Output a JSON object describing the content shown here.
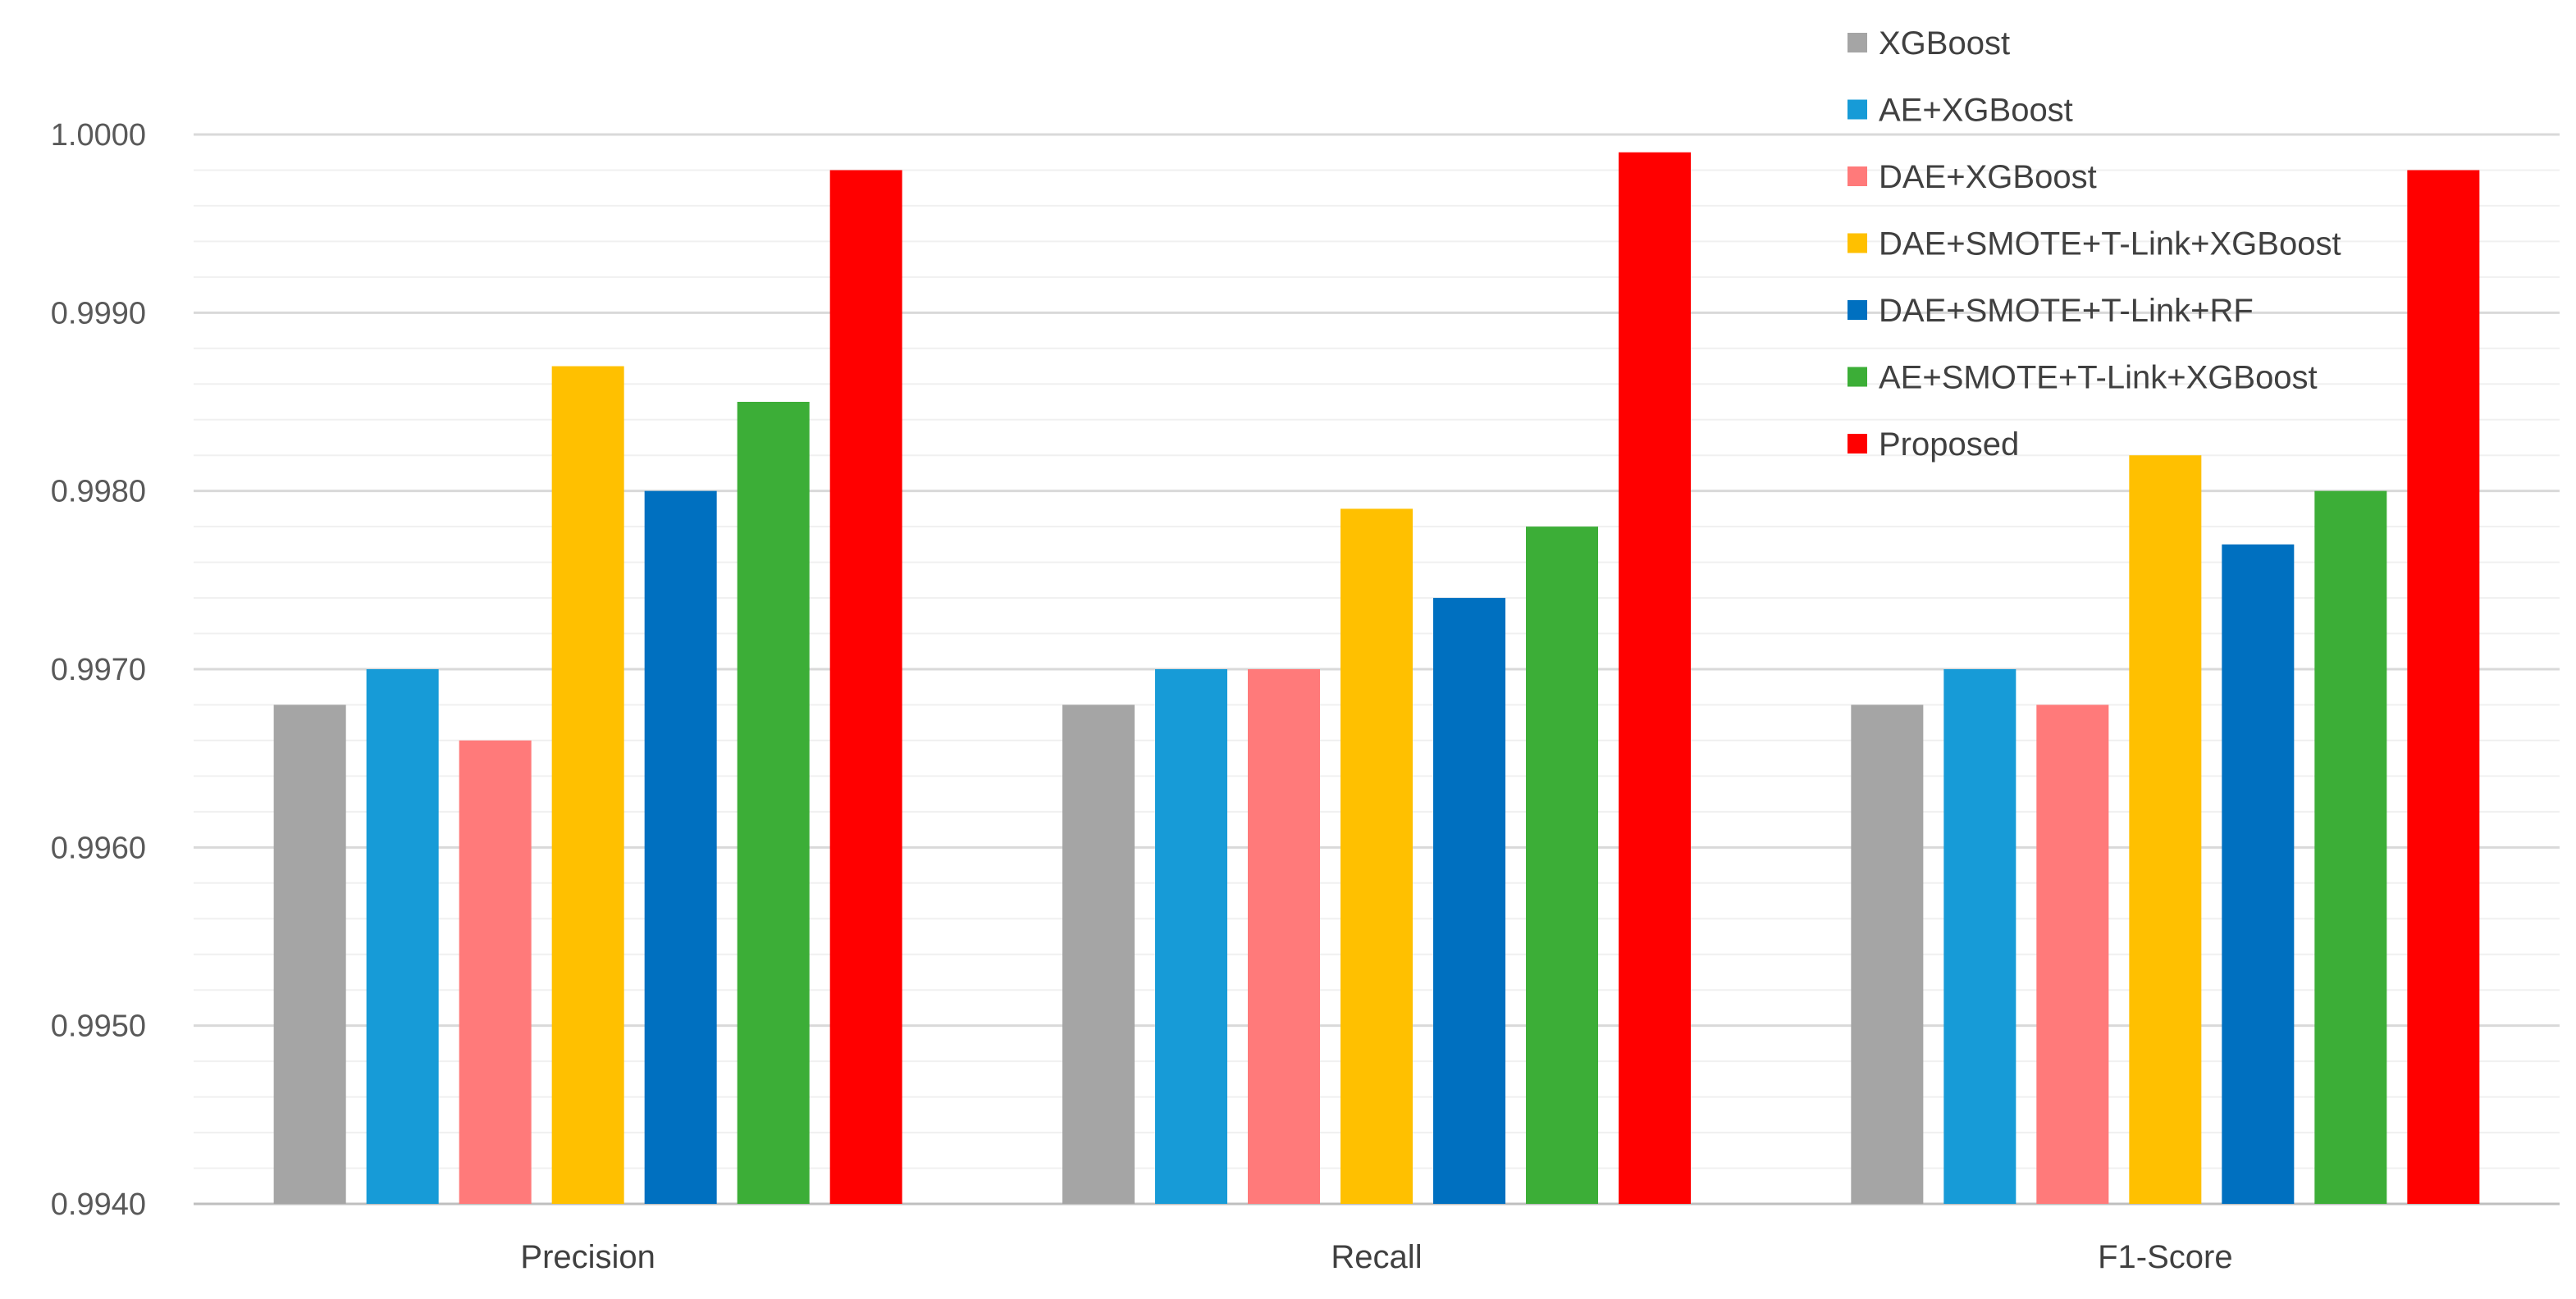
{
  "chart_data": {
    "type": "bar",
    "title": "",
    "xlabel": "",
    "ylabel": "",
    "categories": [
      "Precision",
      "Recall",
      "F1-Score"
    ],
    "ylim": [
      0.994,
      1.0
    ],
    "yticks": [
      "0.9940",
      "0.9950",
      "0.9960",
      "0.9970",
      "0.9980",
      "0.9990",
      "1.0000"
    ],
    "ytick_values": [
      0.994,
      0.995,
      0.996,
      0.997,
      0.998,
      0.999,
      1.0
    ],
    "minor_grid_step": 0.0002,
    "grid": true,
    "legend_position": "top-right",
    "series": [
      {
        "name": "XGBoost",
        "color": "#A5A5A5",
        "values": [
          0.9968,
          0.9968,
          0.9968
        ]
      },
      {
        "name": "AE+XGBoost",
        "color": "#179BD7",
        "values": [
          0.997,
          0.997,
          0.997
        ]
      },
      {
        "name": "DAE+XGBoost",
        "color": "#FF7A7A",
        "values": [
          0.9966,
          0.997,
          0.9968
        ]
      },
      {
        "name": "DAE+SMOTE+T-Link+XGBoost",
        "color": "#FFC000",
        "values": [
          0.9987,
          0.9979,
          0.9982
        ]
      },
      {
        "name": "DAE+SMOTE+T-Link+RF",
        "color": "#0070C0",
        "values": [
          0.998,
          0.9974,
          0.9977
        ]
      },
      {
        "name": "AE+SMOTE+T-Link+XGBoost",
        "color": "#3CAE37",
        "values": [
          0.9985,
          0.9978,
          0.998
        ]
      },
      {
        "name": "Proposed",
        "color": "#FF0000",
        "values": [
          0.9998,
          0.9999,
          0.9998
        ]
      }
    ]
  }
}
